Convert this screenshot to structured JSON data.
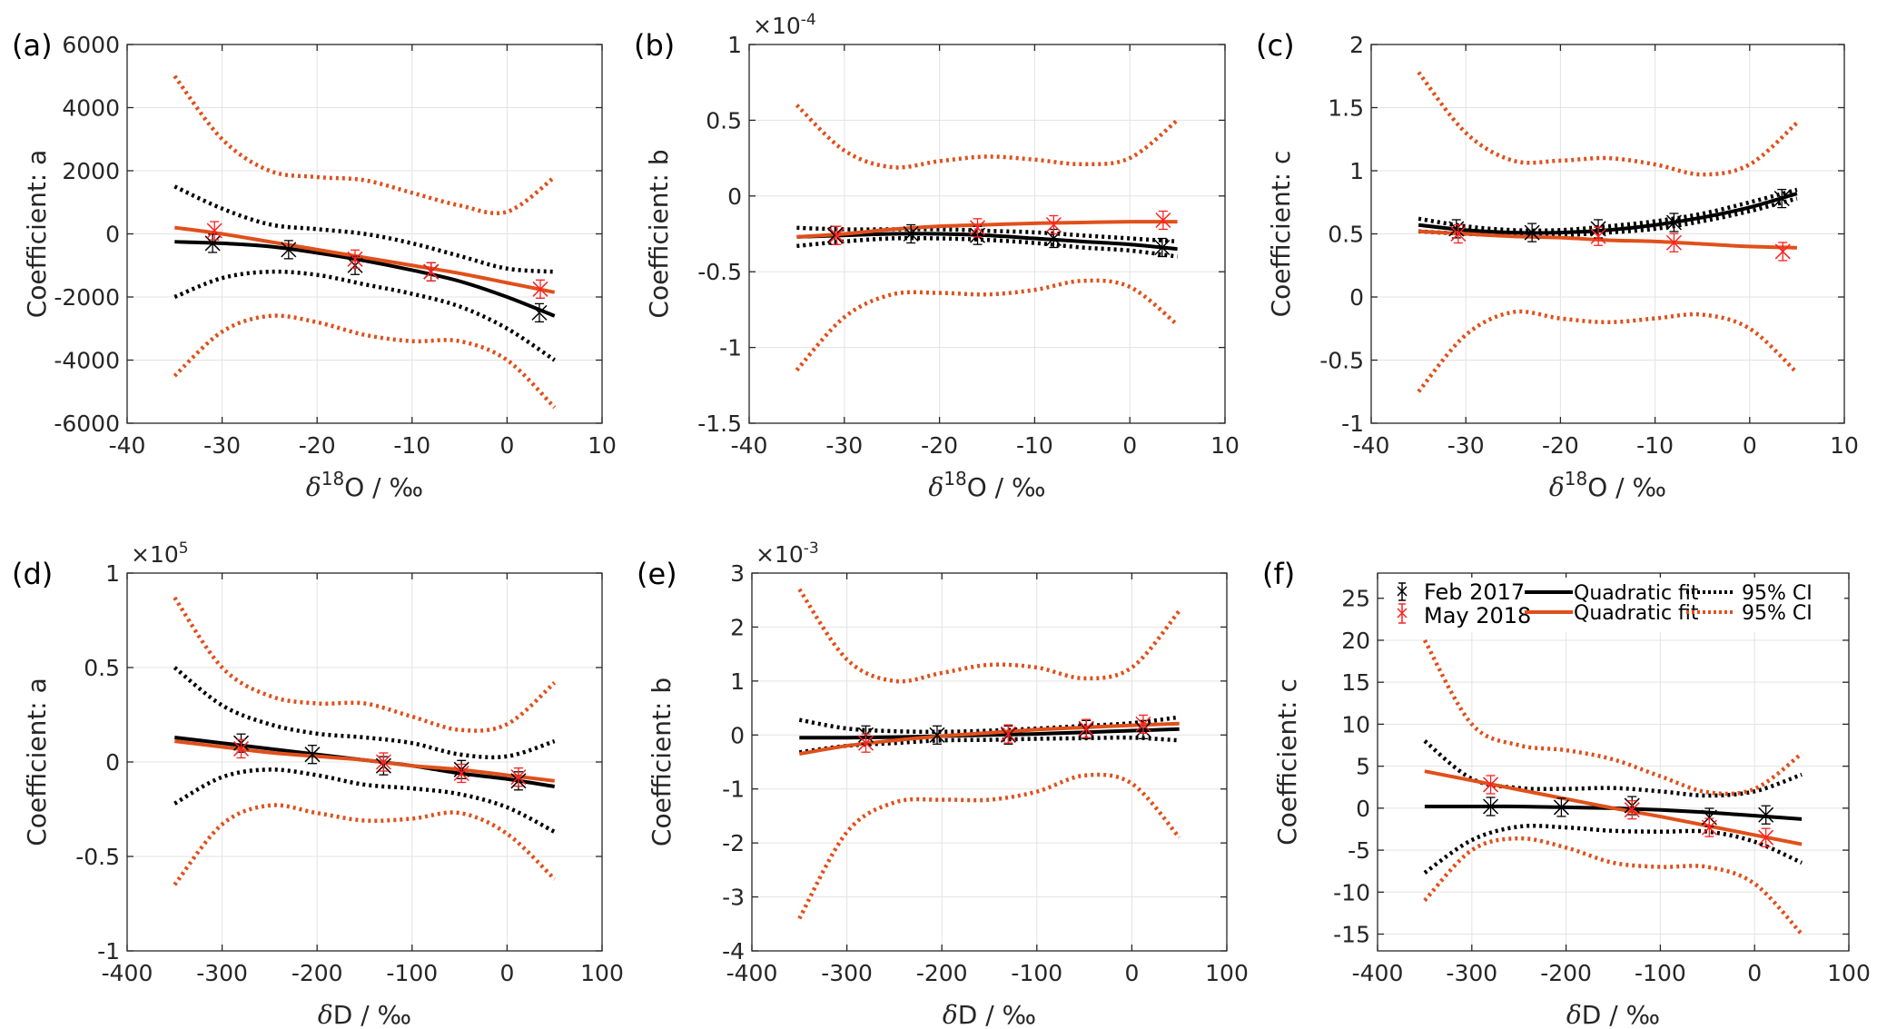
{
  "colors": {
    "feb": "#000000",
    "may": "#e0501b",
    "may_marker": "#ff2020",
    "grid": "#e3e3e3",
    "axis": "#262626"
  },
  "legend": {
    "feb_label": "Feb 2017",
    "may_label": "May 2018",
    "fit_label_feb": "Quadratic fit",
    "fit_label_may": "Quadratic fit",
    "ci_label_feb": "95% CI",
    "ci_label_may": "95% CI",
    "placement": "top"
  },
  "chart_data": [
    {
      "type": "line",
      "panel_label": "(a)",
      "xlabel_main": "δ",
      "xlabel_sup": "18",
      "xlabel_rest": "O / ‰",
      "ylabel": "Coefficient: a",
      "exponent_base": "",
      "exponent": "",
      "xlim": [
        -40,
        10
      ],
      "ylim": [
        -6000,
        6000
      ],
      "xticks": [
        -40,
        -30,
        -20,
        -10,
        0,
        10
      ],
      "yticks": [
        -6000,
        -4000,
        -2000,
        0,
        2000,
        4000,
        6000
      ],
      "curve_x": [
        -35,
        -30,
        -25,
        -20,
        -15,
        -10,
        -5,
        0,
        5
      ],
      "series": [
        {
          "name": "Feb 2017 Quadratic fit",
          "group": "feb",
          "style": "fit",
          "values": [
            -250,
            -300,
            -400,
            -600,
            -850,
            -1150,
            -1500,
            -2000,
            -2600
          ]
        },
        {
          "name": "Feb 2017 95% CI upper",
          "group": "feb",
          "style": "ci",
          "values": [
            1500,
            800,
            300,
            150,
            0,
            -300,
            -700,
            -1100,
            -1200
          ]
        },
        {
          "name": "Feb 2017 95% CI lower",
          "group": "feb",
          "style": "ci",
          "values": [
            -2000,
            -1400,
            -1200,
            -1300,
            -1600,
            -1900,
            -2300,
            -3000,
            -4000
          ]
        },
        {
          "name": "May 2018 Quadratic fit",
          "group": "may",
          "style": "fit",
          "values": [
            200,
            0,
            -250,
            -500,
            -750,
            -1000,
            -1250,
            -1550,
            -1850
          ]
        },
        {
          "name": "May 2018 95% CI upper",
          "group": "may",
          "style": "ci",
          "values": [
            5000,
            3000,
            2000,
            1800,
            1700,
            1300,
            900,
            700,
            1800
          ]
        },
        {
          "name": "May 2018 95% CI lower",
          "group": "may",
          "style": "ci",
          "values": [
            -4500,
            -3100,
            -2600,
            -2800,
            -3200,
            -3400,
            -3400,
            -4000,
            -5500
          ]
        }
      ],
      "points": [
        {
          "name": "Feb 2017",
          "group": "feb",
          "x": [
            -31,
            -23,
            -16,
            -8,
            3.4
          ],
          "y": [
            -300,
            -500,
            -1000,
            -1200,
            -2500
          ]
        },
        {
          "name": "May 2018",
          "group": "may",
          "x": [
            -30.8,
            -16,
            -8,
            3.5
          ],
          "y": [
            100,
            -800,
            -1200,
            -1750
          ]
        }
      ]
    },
    {
      "type": "line",
      "panel_label": "(b)",
      "xlabel_main": "δ",
      "xlabel_sup": "18",
      "xlabel_rest": "O / ‰",
      "ylabel": "Coefficient: b",
      "exponent_base": "×10",
      "exponent": "-4",
      "xlim": [
        -40,
        10
      ],
      "ylim": [
        -1.5,
        1
      ],
      "xticks": [
        -40,
        -30,
        -20,
        -10,
        0,
        10
      ],
      "yticks": [
        -1.5,
        -1,
        -0.5,
        0,
        0.5,
        1
      ],
      "curve_x": [
        -35,
        -30,
        -25,
        -20,
        -15,
        -10,
        -5,
        0,
        5
      ],
      "series": [
        {
          "name": "Feb 2017 Quadratic fit",
          "group": "feb",
          "style": "fit",
          "values": [
            -0.27,
            -0.26,
            -0.25,
            -0.25,
            -0.26,
            -0.28,
            -0.3,
            -0.32,
            -0.35
          ]
        },
        {
          "name": "Feb 2017 95% CI upper",
          "group": "feb",
          "style": "ci",
          "values": [
            -0.21,
            -0.22,
            -0.22,
            -0.22,
            -0.23,
            -0.24,
            -0.26,
            -0.28,
            -0.3
          ]
        },
        {
          "name": "Feb 2017 95% CI lower",
          "group": "feb",
          "style": "ci",
          "values": [
            -0.33,
            -0.3,
            -0.28,
            -0.28,
            -0.29,
            -0.31,
            -0.34,
            -0.36,
            -0.4
          ]
        },
        {
          "name": "May 2018 Quadratic fit",
          "group": "may",
          "style": "fit",
          "values": [
            -0.27,
            -0.25,
            -0.22,
            -0.2,
            -0.19,
            -0.18,
            -0.175,
            -0.17,
            -0.17
          ]
        },
        {
          "name": "May 2018 95% CI upper",
          "group": "may",
          "style": "ci",
          "values": [
            0.6,
            0.3,
            0.19,
            0.23,
            0.26,
            0.24,
            0.21,
            0.25,
            0.5
          ]
        },
        {
          "name": "May 2018 95% CI lower",
          "group": "may",
          "style": "ci",
          "values": [
            -1.15,
            -0.8,
            -0.65,
            -0.64,
            -0.65,
            -0.62,
            -0.56,
            -0.6,
            -0.85
          ]
        }
      ],
      "points": [
        {
          "name": "Feb 2017",
          "group": "feb",
          "x": [
            -31,
            -23,
            -16,
            -8,
            3.4
          ],
          "y": [
            -0.26,
            -0.25,
            -0.26,
            -0.28,
            -0.34
          ]
        },
        {
          "name": "May 2018",
          "group": "may",
          "x": [
            -30.8,
            -16,
            -8,
            3.5
          ],
          "y": [
            -0.26,
            -0.21,
            -0.19,
            -0.16
          ]
        }
      ]
    },
    {
      "type": "line",
      "panel_label": "(c)",
      "xlabel_main": "δ",
      "xlabel_sup": "18",
      "xlabel_rest": "O / ‰",
      "ylabel": "Coefficient: c",
      "exponent_base": "",
      "exponent": "",
      "xlim": [
        -40,
        10
      ],
      "ylim": [
        -1,
        2
      ],
      "xticks": [
        -40,
        -30,
        -20,
        -10,
        0,
        10
      ],
      "yticks": [
        -1,
        -0.5,
        0,
        0.5,
        1,
        1.5,
        2
      ],
      "curve_x": [
        -35,
        -30,
        -25,
        -20,
        -15,
        -10,
        -5,
        0,
        5
      ],
      "series": [
        {
          "name": "Feb 2017 Quadratic fit",
          "group": "feb",
          "style": "fit",
          "values": [
            0.57,
            0.53,
            0.51,
            0.51,
            0.53,
            0.57,
            0.63,
            0.71,
            0.82
          ]
        },
        {
          "name": "Feb 2017 95% CI upper",
          "group": "feb",
          "style": "ci",
          "values": [
            0.62,
            0.56,
            0.53,
            0.53,
            0.56,
            0.6,
            0.66,
            0.75,
            0.85
          ]
        },
        {
          "name": "Feb 2017 95% CI lower",
          "group": "feb",
          "style": "ci",
          "values": [
            0.52,
            0.5,
            0.49,
            0.49,
            0.51,
            0.54,
            0.6,
            0.68,
            0.78
          ]
        },
        {
          "name": "May 2018 Quadratic fit",
          "group": "may",
          "style": "fit",
          "values": [
            0.52,
            0.5,
            0.48,
            0.47,
            0.45,
            0.44,
            0.42,
            0.4,
            0.39
          ]
        },
        {
          "name": "May 2018 95% CI upper",
          "group": "may",
          "style": "ci",
          "values": [
            1.78,
            1.3,
            1.08,
            1.08,
            1.1,
            1.05,
            0.97,
            1.05,
            1.38
          ]
        },
        {
          "name": "May 2018 95% CI lower",
          "group": "may",
          "style": "ci",
          "values": [
            -0.75,
            -0.3,
            -0.12,
            -0.17,
            -0.2,
            -0.17,
            -0.14,
            -0.25,
            -0.6
          ]
        }
      ],
      "points": [
        {
          "name": "Feb 2017",
          "group": "feb",
          "x": [
            -31,
            -23,
            -16,
            -8,
            3.4
          ],
          "y": [
            0.54,
            0.51,
            0.54,
            0.59,
            0.78
          ]
        },
        {
          "name": "May 2018",
          "group": "may",
          "x": [
            -30.8,
            -16,
            -8,
            3.5
          ],
          "y": [
            0.5,
            0.48,
            0.43,
            0.36
          ]
        }
      ]
    },
    {
      "type": "line",
      "panel_label": "(d)",
      "xlabel_main": "δ",
      "xlabel_sup": "",
      "xlabel_rest": "D / ‰",
      "ylabel": "Coefficient: a",
      "exponent_base": "×10",
      "exponent": "5",
      "xlim": [
        -400,
        100
      ],
      "ylim": [
        -1,
        1
      ],
      "xticks": [
        -400,
        -300,
        -200,
        -100,
        0,
        100
      ],
      "yticks": [
        -1,
        -0.5,
        0,
        0.5,
        1
      ],
      "curve_x": [
        -350,
        -300,
        -250,
        -200,
        -150,
        -100,
        -50,
        0,
        50
      ],
      "series": [
        {
          "name": "Feb 2017 Quadratic fit",
          "group": "feb",
          "style": "fit",
          "values": [
            0.13,
            0.1,
            0.07,
            0.04,
            0.01,
            -0.02,
            -0.06,
            -0.09,
            -0.13
          ]
        },
        {
          "name": "Feb 2017 95% CI upper",
          "group": "feb",
          "style": "ci",
          "values": [
            0.5,
            0.3,
            0.2,
            0.15,
            0.13,
            0.1,
            0.04,
            0.03,
            0.11
          ]
        },
        {
          "name": "Feb 2017 95% CI lower",
          "group": "feb",
          "style": "ci",
          "values": [
            -0.22,
            -0.08,
            -0.04,
            -0.07,
            -0.12,
            -0.14,
            -0.17,
            -0.24,
            -0.37
          ]
        },
        {
          "name": "May 2018 Quadratic fit",
          "group": "may",
          "style": "fit",
          "values": [
            0.11,
            0.08,
            0.05,
            0.03,
            0.01,
            -0.02,
            -0.04,
            -0.07,
            -0.1
          ]
        },
        {
          "name": "May 2018 95% CI upper",
          "group": "may",
          "style": "ci",
          "values": [
            0.87,
            0.5,
            0.35,
            0.31,
            0.31,
            0.24,
            0.17,
            0.2,
            0.42
          ]
        },
        {
          "name": "May 2018 95% CI lower",
          "group": "may",
          "style": "ci",
          "values": [
            -0.65,
            -0.33,
            -0.23,
            -0.27,
            -0.31,
            -0.3,
            -0.27,
            -0.38,
            -0.62
          ]
        }
      ],
      "points": [
        {
          "name": "Feb 2017",
          "group": "feb",
          "x": [
            -280,
            -205,
            -130,
            -48,
            12
          ],
          "y": [
            0.1,
            0.04,
            -0.02,
            -0.04,
            -0.1
          ]
        },
        {
          "name": "May 2018",
          "group": "may",
          "x": [
            -280,
            -130,
            -48,
            12
          ],
          "y": [
            0.07,
            0.0,
            -0.06,
            -0.08
          ]
        }
      ]
    },
    {
      "type": "line",
      "panel_label": "(e)",
      "xlabel_main": "δ",
      "xlabel_sup": "",
      "xlabel_rest": "D / ‰",
      "ylabel": "Coefficient: b",
      "exponent_base": "×10",
      "exponent": "-3",
      "xlim": [
        -400,
        100
      ],
      "ylim": [
        -4,
        3
      ],
      "xticks": [
        -400,
        -300,
        -200,
        -100,
        0,
        100
      ],
      "yticks": [
        -4,
        -3,
        -2,
        -1,
        0,
        1,
        2,
        3
      ],
      "curve_x": [
        -350,
        -300,
        -250,
        -200,
        -150,
        -100,
        -50,
        0,
        50
      ],
      "series": [
        {
          "name": "Feb 2017 Quadratic fit",
          "group": "feb",
          "style": "fit",
          "values": [
            -0.05,
            -0.05,
            -0.04,
            -0.02,
            0,
            0.02,
            0.05,
            0.08,
            0.11
          ]
        },
        {
          "name": "Feb 2017 95% CI upper",
          "group": "feb",
          "style": "ci",
          "values": [
            0.28,
            0.12,
            0.07,
            0.06,
            0.08,
            0.12,
            0.17,
            0.22,
            0.33
          ]
        },
        {
          "name": "Feb 2017 95% CI lower",
          "group": "feb",
          "style": "ci",
          "values": [
            -0.32,
            -0.2,
            -0.15,
            -0.1,
            -0.09,
            -0.07,
            -0.06,
            -0.05,
            -0.1
          ]
        },
        {
          "name": "May 2018 Quadratic fit",
          "group": "may",
          "style": "fit",
          "values": [
            -0.35,
            -0.2,
            -0.1,
            -0.02,
            0.04,
            0.1,
            0.14,
            0.18,
            0.21
          ]
        },
        {
          "name": "May 2018 95% CI upper",
          "group": "may",
          "style": "ci",
          "values": [
            2.7,
            1.4,
            1.0,
            1.15,
            1.3,
            1.25,
            1.05,
            1.25,
            2.3
          ]
        },
        {
          "name": "May 2018 95% CI lower",
          "group": "may",
          "style": "ci",
          "values": [
            -3.4,
            -1.8,
            -1.25,
            -1.2,
            -1.2,
            -1.05,
            -0.75,
            -0.9,
            -1.9
          ]
        }
      ],
      "points": [
        {
          "name": "Feb 2017",
          "group": "feb",
          "x": [
            -280,
            -205,
            -130,
            -48,
            12
          ],
          "y": [
            0.0,
            0.0,
            0.0,
            0.1,
            0.1
          ]
        },
        {
          "name": "May 2018",
          "group": "may",
          "x": [
            -280,
            -130,
            -48,
            12
          ],
          "y": [
            -0.15,
            0.02,
            0.12,
            0.2
          ]
        }
      ]
    },
    {
      "type": "line",
      "panel_label": "(f)",
      "xlabel_main": "δ",
      "xlabel_sup": "",
      "xlabel_rest": "D / ‰",
      "ylabel": "Coefficient: c",
      "exponent_base": "",
      "exponent": "",
      "xlim": [
        -400,
        100
      ],
      "ylim": [
        -17,
        28
      ],
      "xticks": [
        -400,
        -300,
        -200,
        -100,
        0,
        100
      ],
      "yticks": [
        -15,
        -10,
        -5,
        0,
        5,
        10,
        15,
        20,
        25
      ],
      "curve_x": [
        -350,
        -300,
        -250,
        -200,
        -150,
        -100,
        -50,
        0,
        50
      ],
      "series": [
        {
          "name": "Feb 2017 Quadratic fit",
          "group": "feb",
          "style": "fit",
          "values": [
            0.2,
            0.2,
            0.2,
            0.1,
            0,
            -0.2,
            -0.5,
            -0.9,
            -1.3
          ]
        },
        {
          "name": "Feb 2017 95% CI upper",
          "group": "feb",
          "style": "ci",
          "values": [
            8,
            3.5,
            2.4,
            2.3,
            2.4,
            2.0,
            1.5,
            2.0,
            4.0
          ]
        },
        {
          "name": "Feb 2017 95% CI lower",
          "group": "feb",
          "style": "ci",
          "values": [
            -7.7,
            -3.8,
            -2.2,
            -2.3,
            -2.7,
            -2.8,
            -2.8,
            -4.0,
            -6.5
          ]
        },
        {
          "name": "May 2018 Quadratic fit",
          "group": "may",
          "style": "fit",
          "values": [
            4.4,
            3.3,
            2.2,
            1.1,
            0.0,
            -1.0,
            -2.1,
            -3.2,
            -4.3
          ]
        },
        {
          "name": "May 2018 95% CI upper",
          "group": "may",
          "style": "ci",
          "values": [
            20,
            10,
            7.5,
            6.9,
            5.8,
            3.8,
            1.9,
            2.3,
            6.5
          ]
        },
        {
          "name": "May 2018 95% CI lower",
          "group": "may",
          "style": "ci",
          "values": [
            -11,
            -5,
            -3.6,
            -4.7,
            -6.5,
            -7,
            -7,
            -9,
            -15
          ]
        }
      ],
      "points": [
        {
          "name": "Feb 2017",
          "group": "feb",
          "x": [
            -280,
            -205,
            -130,
            -48,
            12
          ],
          "y": [
            0.2,
            0.1,
            0.3,
            -1.1,
            -0.8
          ]
        },
        {
          "name": "May 2018",
          "group": "may",
          "x": [
            -280,
            -130,
            -48,
            12
          ],
          "y": [
            2.8,
            -0.2,
            -2.3,
            -3.5
          ]
        }
      ]
    }
  ]
}
